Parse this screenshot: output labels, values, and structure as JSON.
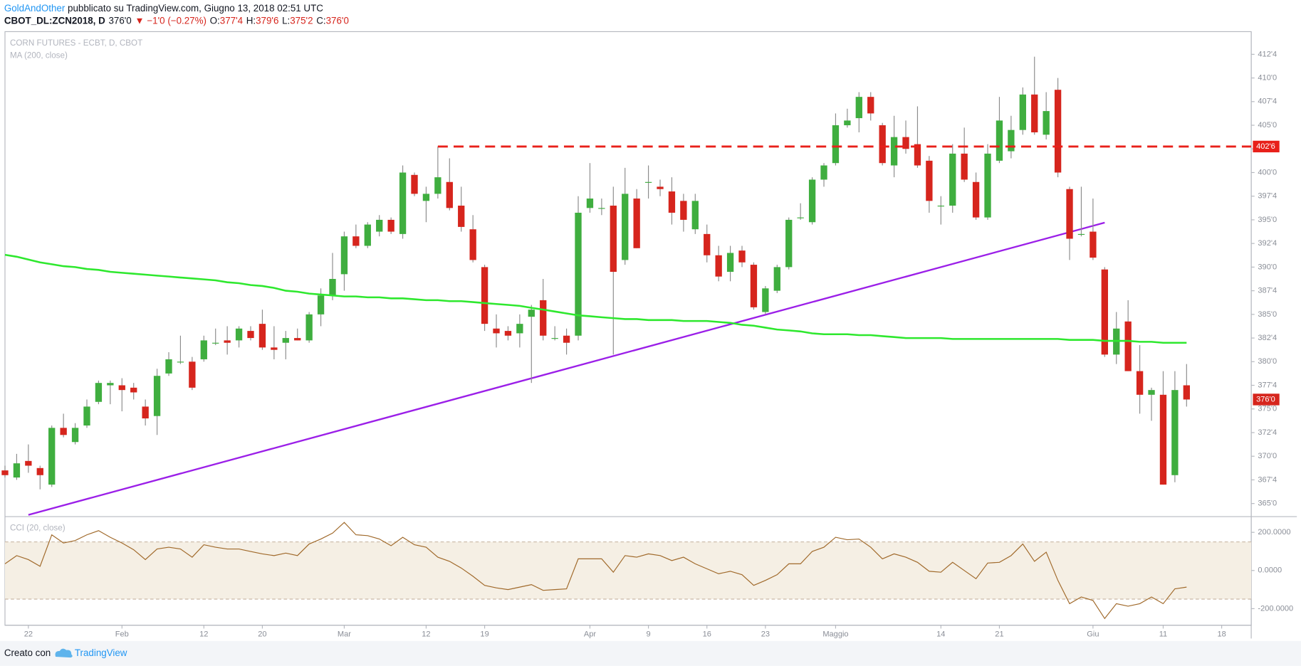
{
  "header": {
    "author": "GoldAndOther",
    "published": " pubblicato su TradingView.com, Giugno 13, 2018 02:51 UTC",
    "symbol": "CBOT_DL:ZCN2018, D",
    "last": "376'0",
    "change": "▼ −1'0 (−0.27%)",
    "open_label": "O:",
    "open": "377'4",
    "high_label": "H:",
    "high": "379'6",
    "low_label": "L:",
    "low": "375'2",
    "close_label": "C:",
    "close": "376'0"
  },
  "footer": {
    "created_with": "Creato con",
    "brand": "TradingView"
  },
  "chart_data": {
    "type": "candlestick",
    "title": "CORN FUTURES - ECBT, D, CBOT",
    "up_color": "#3fae3f",
    "down_color": "#d6251d",
    "categories": [
      null,
      null,
      "22",
      null,
      null,
      null,
      null,
      null,
      null,
      null,
      "Feb",
      null,
      null,
      null,
      null,
      null,
      null,
      "12",
      null,
      null,
      null,
      null,
      "20",
      null,
      null,
      null,
      null,
      null,
      null,
      "Mar",
      null,
      null,
      null,
      null,
      null,
      null,
      "12",
      null,
      null,
      null,
      null,
      "19",
      null,
      null,
      null,
      null,
      null,
      null,
      null,
      null,
      "Apr",
      null,
      null,
      null,
      null,
      "9",
      null,
      null,
      null,
      null,
      "16",
      null,
      null,
      null,
      null,
      "23",
      null,
      null,
      null,
      null,
      null,
      "Maggio",
      null,
      null,
      null,
      null,
      null,
      null,
      null,
      null,
      "14",
      null,
      null,
      null,
      null,
      "21",
      null,
      null,
      null,
      null,
      null,
      null,
      null,
      "Giu",
      null,
      null,
      null,
      null,
      null,
      "11",
      null,
      null,
      null,
      null,
      "18"
    ],
    "open": [
      368.5,
      367.75,
      369.5,
      368.75,
      367,
      373,
      371.5,
      373.25,
      375.75,
      377.5,
      377.5,
      377.25,
      375.25,
      374.25,
      378.75,
      380,
      380,
      380.25,
      382,
      382.25,
      382.25,
      383.25,
      384,
      381.5,
      382,
      382.5,
      382.25,
      385,
      387,
      389.25,
      393.25,
      392.25,
      393.75,
      395,
      393.5,
      399.75,
      397,
      397.75,
      399,
      396.5,
      394,
      390,
      383.5,
      383.25,
      383,
      384.75,
      386.5,
      382.5,
      382.75,
      382.75,
      396.25,
      396.25,
      396.5,
      390.75,
      397.25,
      399,
      398.5,
      398,
      397,
      394,
      393.5,
      391.25,
      389.5,
      391.75,
      390.25,
      385.25,
      387.5,
      390,
      395.25,
      394.75,
      399.25,
      401,
      405,
      405.75,
      408,
      405,
      400.75,
      403.75,
      403,
      401.25,
      396.5,
      396.5,
      402,
      399,
      395.25,
      401.25,
      402.25,
      404.5,
      408.25,
      404,
      408.75,
      398.25,
      393.5,
      393.75,
      389.75,
      380.75,
      384.25,
      379,
      376.5,
      376.5,
      368,
      377.5,
      null,
      null,
      null
    ],
    "high": [
      369,
      370.25,
      371.25,
      369,
      373.25,
      374.5,
      373.5,
      376,
      378,
      378,
      378.25,
      377.75,
      376,
      379.25,
      381,
      382.75,
      380.5,
      382.75,
      383.5,
      383.75,
      383.75,
      383.75,
      385.5,
      383.75,
      383.25,
      383.5,
      385.25,
      387.75,
      391.5,
      393.75,
      394.5,
      394.75,
      395.5,
      395.25,
      400.75,
      400,
      398.5,
      402.75,
      401.5,
      398.5,
      395.5,
      390.25,
      385,
      383.75,
      385,
      386,
      388.75,
      383.75,
      383.5,
      397.5,
      401,
      397.25,
      398.5,
      400.5,
      398.25,
      400.75,
      399.25,
      399.5,
      397.75,
      397.75,
      394.5,
      392.25,
      392.25,
      392.25,
      390.5,
      388,
      390.25,
      395.25,
      396.75,
      399.5,
      401,
      406.25,
      406.75,
      408.5,
      408.5,
      405.25,
      406,
      405.5,
      407,
      401.75,
      397.5,
      403,
      404.75,
      400,
      403,
      408,
      406,
      409,
      412.25,
      408.5,
      410,
      398.5,
      398.5,
      397.25,
      390,
      385.25,
      386.5,
      381.75,
      377.25,
      379,
      379,
      379.75,
      null,
      null,
      null
    ],
    "low": [
      367.75,
      367.5,
      368.25,
      366.5,
      366.75,
      372,
      371.25,
      373,
      375.5,
      375.5,
      374.75,
      376,
      373.25,
      372.25,
      378.5,
      379.75,
      377,
      380,
      381.75,
      380.75,
      381.5,
      382.25,
      381.25,
      380.25,
      380.25,
      382.25,
      382,
      383.75,
      386.5,
      387.5,
      392,
      392,
      393.25,
      393.5,
      393,
      397.5,
      394.75,
      397.25,
      396,
      393.75,
      390.5,
      383.25,
      381.5,
      382.25,
      381.5,
      377.75,
      382.25,
      382.25,
      380.75,
      382.25,
      395.75,
      395.5,
      380.75,
      390.25,
      392,
      397.25,
      397.5,
      394.5,
      393.75,
      393.5,
      390.5,
      388.5,
      388.5,
      390,
      385.5,
      385,
      387.25,
      389.75,
      395,
      394.5,
      398.5,
      400.75,
      404.75,
      404.25,
      405.5,
      400.75,
      399.5,
      402,
      400.5,
      395.75,
      394.5,
      395.75,
      399,
      395,
      395,
      401,
      401.5,
      404,
      404,
      403.5,
      399.5,
      390.75,
      393.25,
      390.75,
      380.5,
      379.75,
      379,
      374.5,
      373.75,
      367,
      367.25,
      375.25,
      null,
      null,
      null
    ],
    "close": [
      368,
      369.25,
      369,
      368,
      373,
      372.25,
      373,
      375.25,
      377.75,
      377.75,
      377,
      376.75,
      374,
      378.5,
      380.25,
      380,
      377.25,
      382.25,
      382,
      382,
      383.5,
      382.5,
      381.5,
      381.25,
      382.5,
      382.25,
      385,
      387,
      388.75,
      393.25,
      392.25,
      394.5,
      395,
      393.75,
      400,
      397.75,
      397.75,
      399.5,
      396.25,
      394.25,
      390.75,
      384,
      383,
      382.75,
      384,
      385.5,
      382.75,
      382.5,
      382,
      395.75,
      397.25,
      396.25,
      389.5,
      397.75,
      392,
      399,
      398.25,
      395.75,
      395,
      397,
      391.25,
      389,
      391.5,
      390.5,
      385.75,
      387.75,
      390,
      395,
      395.25,
      399.25,
      400.75,
      405,
      405.5,
      408,
      406.25,
      401,
      403.75,
      402.5,
      400.75,
      397,
      396.5,
      402,
      399.25,
      395.25,
      402,
      405.5,
      404.5,
      408.25,
      404.25,
      406.5,
      400,
      393,
      393.5,
      391,
      380.75,
      383.5,
      379,
      376.5,
      377,
      367,
      377,
      376,
      null,
      null,
      null
    ],
    "last_price_label": "376'0",
    "ylim": [
      363.7,
      414.9
    ],
    "yticks": [
      {
        "value": 365,
        "label": "365'0"
      },
      {
        "value": 367.5,
        "label": "367'4"
      },
      {
        "value": 370,
        "label": "370'0"
      },
      {
        "value": 372.5,
        "label": "372'4"
      },
      {
        "value": 375,
        "label": "375'0"
      },
      {
        "value": 377.5,
        "label": "377'4"
      },
      {
        "value": 380,
        "label": "380'0"
      },
      {
        "value": 382.5,
        "label": "382'4"
      },
      {
        "value": 385,
        "label": "385'0"
      },
      {
        "value": 387.5,
        "label": "387'4"
      },
      {
        "value": 390,
        "label": "390'0"
      },
      {
        "value": 392.5,
        "label": "392'4"
      },
      {
        "value": 395,
        "label": "395'0"
      },
      {
        "value": 397.5,
        "label": "397'4"
      },
      {
        "value": 400,
        "label": "400'0"
      },
      {
        "value": 402.5,
        "label": "402'4"
      },
      {
        "value": 405,
        "label": "405'0"
      },
      {
        "value": 407.5,
        "label": "407'4"
      },
      {
        "value": 410,
        "label": "410'0"
      },
      {
        "value": 412.5,
        "label": "412'4"
      }
    ],
    "resistance_line": {
      "value": 402.75,
      "label": "402'6",
      "start": 37,
      "color": "#e8201a"
    },
    "trend_line": {
      "x": [
        2,
        94
      ],
      "values": [
        363.8,
        394.7
      ],
      "color": "#9b1fe8"
    },
    "ma": {
      "name": "MA (200, close)",
      "color": "#2ee82e",
      "values": [
        391.3,
        391.1,
        390.8,
        390.5,
        390.3,
        390.1,
        390.0,
        389.8,
        389.7,
        389.5,
        389.4,
        389.3,
        389.2,
        389.1,
        389.0,
        388.9,
        388.8,
        388.7,
        388.6,
        388.4,
        388.3,
        388.1,
        388.0,
        387.8,
        387.5,
        387.4,
        387.2,
        387.1,
        387.0,
        386.9,
        386.9,
        386.8,
        386.8,
        386.7,
        386.7,
        386.6,
        386.5,
        386.5,
        386.4,
        386.4,
        386.3,
        386.2,
        386.1,
        386.0,
        385.9,
        385.7,
        385.5,
        385.3,
        385.1,
        384.9,
        384.8,
        384.7,
        384.6,
        384.5,
        384.5,
        384.4,
        384.4,
        384.4,
        384.3,
        384.3,
        384.3,
        384.2,
        384.1,
        383.9,
        383.8,
        383.6,
        383.4,
        383.3,
        383.2,
        383.0,
        382.9,
        382.9,
        382.9,
        382.8,
        382.8,
        382.7,
        382.6,
        382.5,
        382.5,
        382.5,
        382.5,
        382.4,
        382.4,
        382.4,
        382.4,
        382.4,
        382.4,
        382.4,
        382.4,
        382.4,
        382.4,
        382.3,
        382.3,
        382.3,
        382.2,
        382.2,
        382.2,
        382.1,
        382.1,
        382.0,
        382.0,
        382.0,
        null,
        null,
        null
      ]
    },
    "cci": {
      "name": "CCI (20, close)",
      "color": "#a0692a",
      "band": [
        -150,
        150
      ],
      "band_color": "#f5efe4",
      "values": [
        35,
        78,
        57,
        22,
        187,
        144,
        157,
        187,
        209,
        174,
        144,
        109,
        57,
        113,
        122,
        113,
        70,
        135,
        122,
        113,
        113,
        100,
        87,
        78,
        91,
        78,
        139,
        165,
        196,
        252,
        187,
        183,
        165,
        130,
        174,
        135,
        122,
        70,
        48,
        13,
        -30,
        -78,
        -91,
        -100,
        -87,
        -74,
        -104,
        -100,
        -96,
        61,
        61,
        61,
        -9,
        78,
        70,
        87,
        78,
        52,
        70,
        35,
        9,
        -17,
        -4,
        -22,
        -78,
        -52,
        -22,
        35,
        35,
        100,
        122,
        174,
        161,
        165,
        122,
        61,
        87,
        70,
        43,
        -4,
        -9,
        43,
        0,
        -43,
        39,
        43,
        78,
        139,
        48,
        96,
        -52,
        -174,
        -139,
        -157,
        -252,
        -174,
        -187,
        -174,
        -139,
        -174,
        -96,
        -87,
        null,
        null,
        null
      ],
      "ylim": [
        -287,
        278
      ],
      "yticks": [
        {
          "value": -200,
          "label": "-200.0000"
        },
        {
          "value": 0,
          "label": "0.0000"
        },
        {
          "value": 200,
          "label": "200.0000"
        }
      ]
    }
  }
}
